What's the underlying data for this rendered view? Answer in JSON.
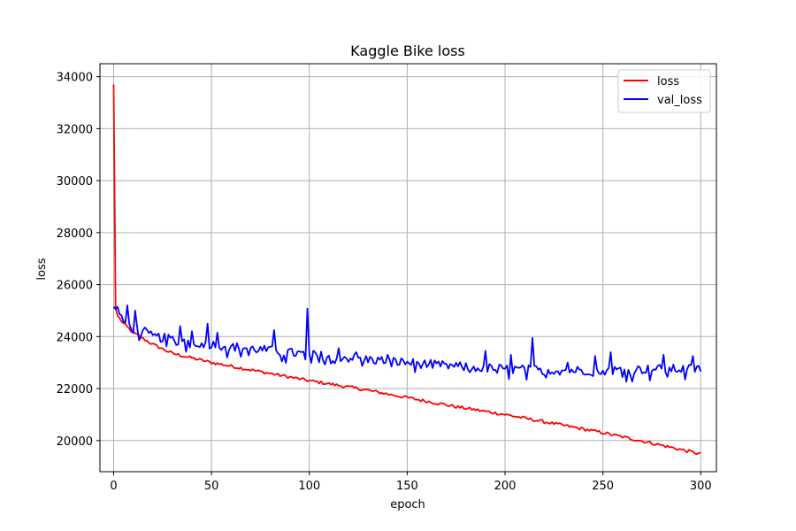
{
  "chart_data": {
    "type": "line",
    "title": "Kaggle Bike loss",
    "xlabel": "epoch",
    "ylabel": "loss",
    "xlim": [
      -7,
      308
    ],
    "ylim": [
      18800,
      34500
    ],
    "xticks": [
      0,
      50,
      100,
      150,
      200,
      250,
      300
    ],
    "yticks": [
      20000,
      22000,
      24000,
      26000,
      28000,
      30000,
      32000,
      34000
    ],
    "grid": true,
    "legend_position": "top-right",
    "series": [
      {
        "name": "loss",
        "color": "#ff0000",
        "keypoints": [
          [
            0,
            33700
          ],
          [
            1,
            25100
          ],
          [
            2,
            24800
          ],
          [
            5,
            24500
          ],
          [
            10,
            24150
          ],
          [
            20,
            23700
          ],
          [
            30,
            23350
          ],
          [
            50,
            23000
          ],
          [
            75,
            22650
          ],
          [
            100,
            22300
          ],
          [
            125,
            22000
          ],
          [
            150,
            21650
          ],
          [
            175,
            21300
          ],
          [
            200,
            21000
          ],
          [
            225,
            20650
          ],
          [
            250,
            20300
          ],
          [
            275,
            19900
          ],
          [
            290,
            19650
          ],
          [
            300,
            19480
          ]
        ],
        "noise": 60
      },
      {
        "name": "val_loss",
        "color": "#0000ff",
        "keypoints": [
          [
            0,
            25150
          ],
          [
            1,
            25050
          ],
          [
            2,
            25150
          ],
          [
            4,
            24650
          ],
          [
            10,
            24300
          ],
          [
            20,
            24000
          ],
          [
            30,
            23900
          ],
          [
            50,
            23700
          ],
          [
            75,
            23500
          ],
          [
            100,
            23300
          ],
          [
            125,
            23150
          ],
          [
            150,
            23000
          ],
          [
            175,
            22850
          ],
          [
            200,
            22750
          ],
          [
            225,
            22700
          ],
          [
            250,
            22700
          ],
          [
            275,
            22750
          ],
          [
            300,
            22750
          ]
        ],
        "noise": 180,
        "spikes": [
          [
            7,
            25200
          ],
          [
            11,
            25000
          ],
          [
            16,
            24350
          ],
          [
            34,
            24400
          ],
          [
            40,
            24200
          ],
          [
            48,
            24500
          ],
          [
            53,
            24150
          ],
          [
            82,
            24250
          ],
          [
            99,
            25080
          ],
          [
            115,
            23550
          ],
          [
            124,
            23400
          ],
          [
            140,
            23300
          ],
          [
            170,
            22950
          ],
          [
            190,
            23450
          ],
          [
            203,
            23300
          ],
          [
            214,
            23950
          ],
          [
            232,
            23000
          ],
          [
            246,
            23250
          ],
          [
            254,
            23400
          ],
          [
            281,
            23300
          ],
          [
            296,
            23250
          ]
        ]
      }
    ]
  }
}
